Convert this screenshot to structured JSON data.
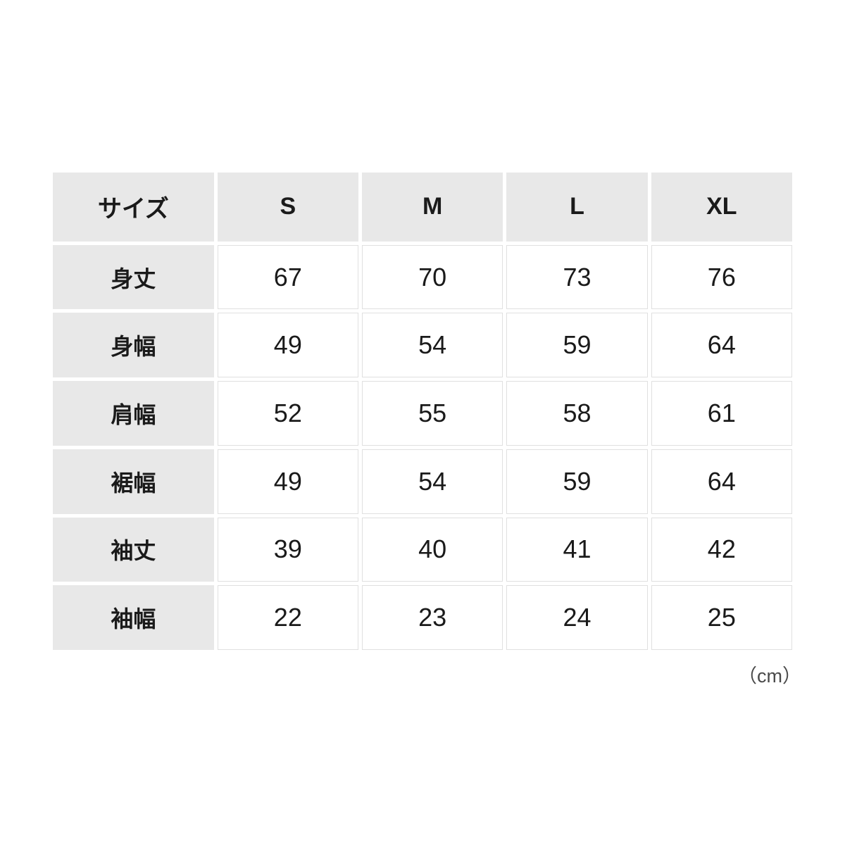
{
  "page": {
    "background_color": "#ffffff"
  },
  "size_chart": {
    "header": {
      "corner_label": "サイズ",
      "columns": [
        "S",
        "M",
        "L",
        "XL"
      ]
    },
    "rows": [
      {
        "label": "身丈",
        "values": [
          "67",
          "70",
          "73",
          "76"
        ]
      },
      {
        "label": "身幅",
        "values": [
          "49",
          "54",
          "59",
          "64"
        ]
      },
      {
        "label": "肩幅",
        "values": [
          "52",
          "55",
          "58",
          "61"
        ]
      },
      {
        "label": "裾幅",
        "values": [
          "49",
          "54",
          "59",
          "64"
        ]
      },
      {
        "label": "袖丈",
        "values": [
          "39",
          "40",
          "41",
          "42"
        ]
      },
      {
        "label": "袖幅",
        "values": [
          "22",
          "23",
          "24",
          "25"
        ]
      }
    ],
    "unit_note": "（cm）",
    "colors": {
      "header_bg": "#e8e8e8",
      "cell_border": "#e0e0e0",
      "text": "#1a1a1a",
      "unit_text": "#4a4a4a"
    }
  }
}
